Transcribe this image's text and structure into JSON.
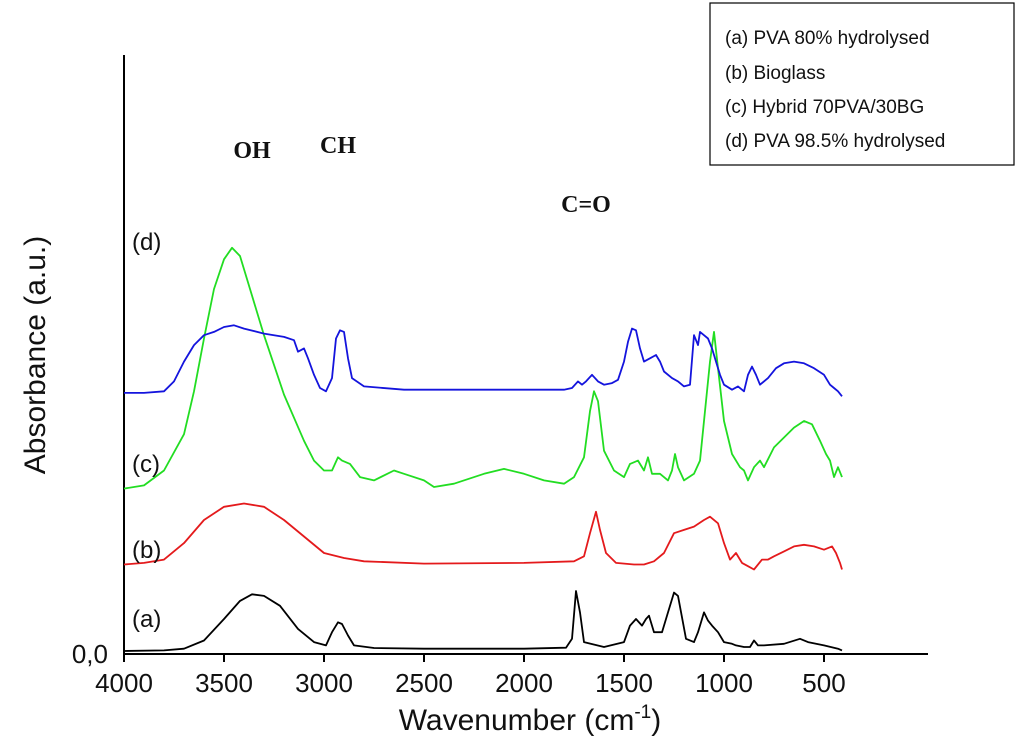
{
  "chart_data": {
    "type": "line",
    "title": "",
    "xlabel": "Wavenumber (cm",
    "xlabel_superscript": "-1",
    "xlabel_close": ")",
    "ylabel": "Absorbance (a.u.)",
    "xlim": [
      4000,
      400
    ],
    "x_reversed": true,
    "xticks": [
      4000,
      3500,
      3000,
      2500,
      2000,
      1500,
      1000,
      500
    ],
    "ytick_label": "0,0",
    "legend_position": "top-right",
    "legend": [
      "(a) PVA 80% hydrolysed",
      "(b) Bioglass",
      "(c) Hybrid 70PVA/30BG",
      "(d) PVA 98.5% hydrolysed"
    ],
    "annotations": {
      "oh": "OH",
      "ch": "CH",
      "co": "C=O"
    },
    "band_positions": {
      "oh": 3360,
      "ch": 2930,
      "co": 1690
    },
    "series": [
      {
        "name": "(a)",
        "color": "#000000",
        "points": [
          [
            4000,
            0.3
          ],
          [
            3800,
            0.5
          ],
          [
            3700,
            1.0
          ],
          [
            3600,
            3.5
          ],
          [
            3500,
            10
          ],
          [
            3420,
            15.5
          ],
          [
            3360,
            17.5
          ],
          [
            3300,
            17
          ],
          [
            3220,
            14
          ],
          [
            3130,
            7
          ],
          [
            3050,
            3
          ],
          [
            2990,
            2
          ],
          [
            2960,
            6
          ],
          [
            2930,
            9
          ],
          [
            2910,
            8.5
          ],
          [
            2880,
            5
          ],
          [
            2850,
            2
          ],
          [
            2750,
            1.2
          ],
          [
            2500,
            1
          ],
          [
            2000,
            1
          ],
          [
            1790,
            1.3
          ],
          [
            1760,
            4
          ],
          [
            1740,
            18.5
          ],
          [
            1720,
            12
          ],
          [
            1700,
            3
          ],
          [
            1600,
            1.5
          ],
          [
            1500,
            3
          ],
          [
            1470,
            8
          ],
          [
            1440,
            10
          ],
          [
            1410,
            8
          ],
          [
            1390,
            10
          ],
          [
            1375,
            11
          ],
          [
            1350,
            6
          ],
          [
            1310,
            6
          ],
          [
            1280,
            12
          ],
          [
            1250,
            18
          ],
          [
            1230,
            17
          ],
          [
            1190,
            4
          ],
          [
            1150,
            3
          ],
          [
            1130,
            6
          ],
          [
            1100,
            12
          ],
          [
            1080,
            9.5
          ],
          [
            1060,
            8
          ],
          [
            1030,
            6
          ],
          [
            1000,
            3
          ],
          [
            960,
            2.5
          ],
          [
            940,
            2
          ],
          [
            900,
            1.5
          ],
          [
            870,
            1.5
          ],
          [
            850,
            3.5
          ],
          [
            830,
            2
          ],
          [
            800,
            2
          ],
          [
            700,
            2.5
          ],
          [
            620,
            4
          ],
          [
            580,
            3
          ],
          [
            500,
            2
          ],
          [
            430,
            1
          ],
          [
            410,
            0.5
          ]
        ]
      },
      {
        "name": "(b)",
        "color": "#e41a1c",
        "points": [
          [
            4000,
            26.5
          ],
          [
            3900,
            27
          ],
          [
            3800,
            28
          ],
          [
            3700,
            33
          ],
          [
            3600,
            40
          ],
          [
            3500,
            44
          ],
          [
            3400,
            45
          ],
          [
            3300,
            44
          ],
          [
            3200,
            40
          ],
          [
            3100,
            35
          ],
          [
            3000,
            30
          ],
          [
            2900,
            28.5
          ],
          [
            2800,
            27.5
          ],
          [
            2500,
            26.8
          ],
          [
            2000,
            27
          ],
          [
            1750,
            27.5
          ],
          [
            1700,
            29
          ],
          [
            1670,
            36
          ],
          [
            1640,
            42.5
          ],
          [
            1620,
            37
          ],
          [
            1590,
            30
          ],
          [
            1540,
            27
          ],
          [
            1450,
            26.5
          ],
          [
            1400,
            26.5
          ],
          [
            1350,
            27.5
          ],
          [
            1300,
            30
          ],
          [
            1250,
            36
          ],
          [
            1200,
            37
          ],
          [
            1150,
            38
          ],
          [
            1100,
            40
          ],
          [
            1070,
            41
          ],
          [
            1030,
            39
          ],
          [
            1000,
            33
          ],
          [
            970,
            28
          ],
          [
            940,
            30
          ],
          [
            910,
            27
          ],
          [
            880,
            26
          ],
          [
            850,
            25
          ],
          [
            810,
            28
          ],
          [
            780,
            28
          ],
          [
            750,
            29
          ],
          [
            700,
            30.5
          ],
          [
            650,
            32
          ],
          [
            600,
            32.5
          ],
          [
            550,
            32
          ],
          [
            500,
            31
          ],
          [
            460,
            32
          ],
          [
            440,
            30
          ],
          [
            420,
            27
          ],
          [
            410,
            25
          ]
        ]
      },
      {
        "name": "(c)",
        "color": "#22dd22",
        "points": [
          [
            4000,
            49.5
          ],
          [
            3900,
            50.5
          ],
          [
            3800,
            55
          ],
          [
            3700,
            66
          ],
          [
            3650,
            79
          ],
          [
            3600,
            95
          ],
          [
            3550,
            110
          ],
          [
            3500,
            119
          ],
          [
            3460,
            122.5
          ],
          [
            3420,
            120
          ],
          [
            3380,
            112
          ],
          [
            3300,
            96
          ],
          [
            3200,
            78
          ],
          [
            3100,
            64
          ],
          [
            3050,
            58
          ],
          [
            3000,
            55
          ],
          [
            2960,
            55
          ],
          [
            2930,
            59
          ],
          [
            2910,
            58
          ],
          [
            2870,
            57
          ],
          [
            2820,
            53
          ],
          [
            2750,
            52
          ],
          [
            2650,
            55
          ],
          [
            2600,
            54
          ],
          [
            2500,
            52
          ],
          [
            2450,
            50
          ],
          [
            2350,
            51
          ],
          [
            2200,
            54
          ],
          [
            2100,
            55.5
          ],
          [
            2000,
            54
          ],
          [
            1900,
            52
          ],
          [
            1800,
            51
          ],
          [
            1750,
            53
          ],
          [
            1700,
            59
          ],
          [
            1670,
            73
          ],
          [
            1650,
            79
          ],
          [
            1630,
            76
          ],
          [
            1600,
            61
          ],
          [
            1550,
            55
          ],
          [
            1500,
            53
          ],
          [
            1470,
            57
          ],
          [
            1430,
            58
          ],
          [
            1400,
            55
          ],
          [
            1380,
            59
          ],
          [
            1360,
            54
          ],
          [
            1320,
            54
          ],
          [
            1280,
            52
          ],
          [
            1260,
            55
          ],
          [
            1245,
            60
          ],
          [
            1230,
            56
          ],
          [
            1200,
            52
          ],
          [
            1150,
            54
          ],
          [
            1120,
            58
          ],
          [
            1100,
            70
          ],
          [
            1070,
            88
          ],
          [
            1050,
            97
          ],
          [
            1030,
            86
          ],
          [
            1000,
            70
          ],
          [
            960,
            60
          ],
          [
            920,
            56
          ],
          [
            900,
            55
          ],
          [
            880,
            52
          ],
          [
            850,
            56
          ],
          [
            820,
            58
          ],
          [
            800,
            56
          ],
          [
            750,
            62
          ],
          [
            700,
            65
          ],
          [
            650,
            68
          ],
          [
            600,
            70
          ],
          [
            560,
            69
          ],
          [
            520,
            64
          ],
          [
            490,
            60
          ],
          [
            470,
            58
          ],
          [
            450,
            53
          ],
          [
            430,
            56
          ],
          [
            410,
            53
          ]
        ]
      },
      {
        "name": "(d)",
        "color": "#1414dd",
        "points": [
          [
            4000,
            78.5
          ],
          [
            3900,
            78.5
          ],
          [
            3800,
            79
          ],
          [
            3750,
            82
          ],
          [
            3700,
            88
          ],
          [
            3650,
            93
          ],
          [
            3600,
            96
          ],
          [
            3550,
            97
          ],
          [
            3500,
            98.5
          ],
          [
            3450,
            99
          ],
          [
            3400,
            98
          ],
          [
            3300,
            96.5
          ],
          [
            3200,
            95.5
          ],
          [
            3150,
            94.5
          ],
          [
            3130,
            91
          ],
          [
            3100,
            92
          ],
          [
            3080,
            89
          ],
          [
            3050,
            84
          ],
          [
            3020,
            80
          ],
          [
            2990,
            79
          ],
          [
            2960,
            83
          ],
          [
            2940,
            95
          ],
          [
            2920,
            97.5
          ],
          [
            2900,
            97
          ],
          [
            2880,
            89
          ],
          [
            2860,
            83
          ],
          [
            2800,
            80.5
          ],
          [
            2600,
            79.5
          ],
          [
            2400,
            79.5
          ],
          [
            2000,
            79.5
          ],
          [
            1800,
            79.5
          ],
          [
            1760,
            80
          ],
          [
            1730,
            82
          ],
          [
            1710,
            81
          ],
          [
            1690,
            82
          ],
          [
            1660,
            84
          ],
          [
            1630,
            82
          ],
          [
            1600,
            81
          ],
          [
            1560,
            81.5
          ],
          [
            1530,
            82.5
          ],
          [
            1500,
            88
          ],
          [
            1480,
            94
          ],
          [
            1460,
            98
          ],
          [
            1440,
            97.5
          ],
          [
            1420,
            92
          ],
          [
            1400,
            88
          ],
          [
            1370,
            89
          ],
          [
            1340,
            90
          ],
          [
            1320,
            88
          ],
          [
            1300,
            85
          ],
          [
            1260,
            83
          ],
          [
            1230,
            82
          ],
          [
            1200,
            80.5
          ],
          [
            1170,
            81
          ],
          [
            1150,
            96
          ],
          [
            1130,
            93
          ],
          [
            1120,
            97
          ],
          [
            1100,
            96
          ],
          [
            1080,
            95
          ],
          [
            1060,
            92
          ],
          [
            1040,
            88
          ],
          [
            1020,
            84
          ],
          [
            1000,
            81
          ],
          [
            960,
            79.5
          ],
          [
            930,
            80.5
          ],
          [
            900,
            79
          ],
          [
            880,
            84
          ],
          [
            860,
            86.5
          ],
          [
            840,
            84
          ],
          [
            820,
            81
          ],
          [
            780,
            83
          ],
          [
            740,
            86
          ],
          [
            700,
            87.5
          ],
          [
            650,
            88
          ],
          [
            600,
            87.5
          ],
          [
            550,
            86
          ],
          [
            500,
            84
          ],
          [
            470,
            81
          ],
          [
            450,
            80
          ],
          [
            430,
            79
          ],
          [
            410,
            77.5
          ]
        ]
      }
    ]
  }
}
